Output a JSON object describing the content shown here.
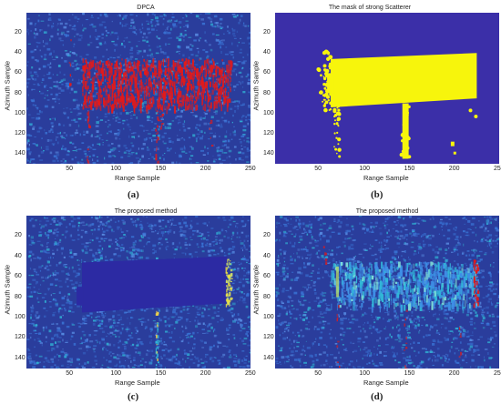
{
  "colors": {
    "background_blue": "#2a3d9c",
    "noise_light": "#3a76d8",
    "noise_cyan": "#31b9d8",
    "scatter_red": "#e21a1a",
    "mask_yellow": "#f7f50c",
    "mask_bg": "#3b2fa8",
    "suppressed_dark": "#2c2aa3"
  },
  "axes": {
    "xlabel": "Range Sample",
    "ylabel": "Azimuth Sample",
    "xticks": [
      "50",
      "100",
      "150",
      "200",
      "250"
    ],
    "yticks": [
      "20",
      "40",
      "60",
      "80",
      "100",
      "120",
      "140"
    ],
    "xlim": [
      0,
      250
    ],
    "ylim": [
      150,
      0
    ]
  },
  "panels": [
    {
      "id": "a",
      "title": "DPCA",
      "caption": "(a)",
      "kind": "dpca"
    },
    {
      "id": "b",
      "title": "The mask of strong  Scatterer",
      "caption": "(b)",
      "kind": "mask"
    },
    {
      "id": "c",
      "title": "The proposed method",
      "caption": "(c)",
      "kind": "suppressed"
    },
    {
      "id": "d",
      "title": "The proposed method",
      "caption": "(d)",
      "kind": "proposed"
    }
  ]
}
